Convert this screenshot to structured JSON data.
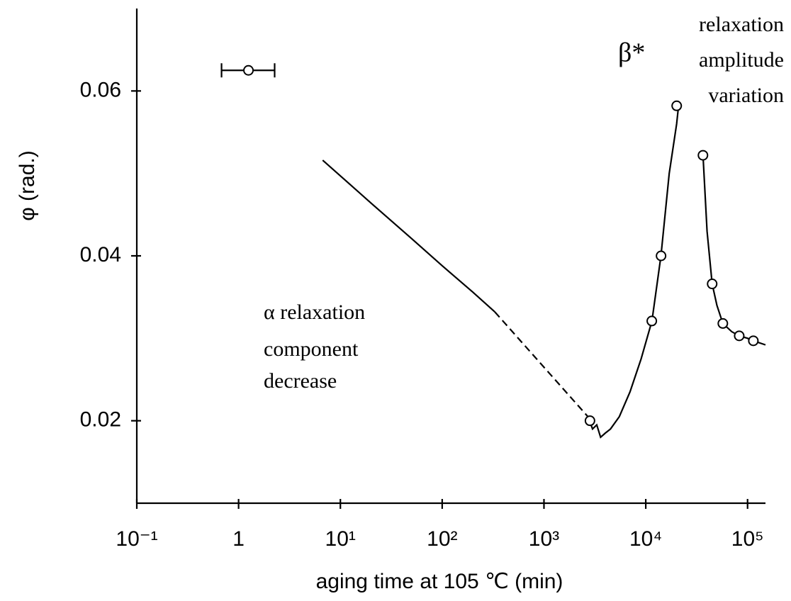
{
  "chart_data": {
    "type": "line",
    "xlabel": "aging time at 105 ℃ (min)",
    "ylabel": "φ (rad.)",
    "xscale": "log",
    "xlim": [
      0.1,
      150000
    ],
    "xticks": [
      {
        "value": 0.1,
        "label": "10⁻¹"
      },
      1,
      {
        "value": 10,
        "label": "10¹"
      },
      {
        "value": 100,
        "label": "10²"
      },
      {
        "value": 1000,
        "label": "10³"
      },
      {
        "value": 10000,
        "label": "10⁴"
      },
      {
        "value": 100000,
        "label": "10⁵"
      }
    ],
    "ylim": [
      0.01,
      0.07
    ],
    "yticks": [
      0.02,
      0.04,
      0.06
    ],
    "color": "#000000",
    "series": [
      {
        "style": "solid",
        "x": [
          6.7,
          10,
          20,
          50,
          100,
          200,
          329
        ],
        "values": [
          0.0516,
          0.0497,
          0.0464,
          0.0421,
          0.0388,
          0.0356,
          0.0332
        ]
      },
      {
        "style": "dashed",
        "x": [
          329,
          2700
        ],
        "values": [
          0.0332,
          0.0205
        ]
      },
      {
        "style": "solid",
        "x": [
          2800,
          3000,
          3300,
          3600,
          4000,
          4500,
          5500,
          7000,
          9000,
          11500,
          14100,
          17000,
          20100,
          21000
        ],
        "values": [
          0.02,
          0.019,
          0.0195,
          0.018,
          0.0185,
          0.019,
          0.0205,
          0.0235,
          0.0275,
          0.0321,
          0.04,
          0.05,
          0.056,
          0.0582
        ]
      },
      {
        "style": "solid",
        "x": [
          36500,
          40000,
          44900,
          50000,
          57200,
          70000,
          82800,
          100000,
          114000,
          150000
        ],
        "values": [
          0.0522,
          0.043,
          0.0366,
          0.034,
          0.0318,
          0.0308,
          0.0303,
          0.03,
          0.0297,
          0.0292
        ]
      }
    ],
    "markers": {
      "x": [
        2830,
        11460,
        14130,
        20130,
        36460,
        44900,
        57150,
        82800,
        114000
      ],
      "values": [
        0.02,
        0.0321,
        0.04,
        0.0582,
        0.0522,
        0.0366,
        0.0318,
        0.0303,
        0.0297
      ]
    },
    "error_point": {
      "x": 1.25,
      "value": 0.0625,
      "xmin": 0.68,
      "xmax": 2.26
    },
    "annotations": [
      {
        "lines": [
          "α relaxation",
          "component",
          "decrease"
        ]
      },
      {
        "lines": [
          "β*"
        ]
      },
      {
        "lines": [
          "relaxation",
          "amplitude",
          "variation"
        ]
      }
    ]
  }
}
